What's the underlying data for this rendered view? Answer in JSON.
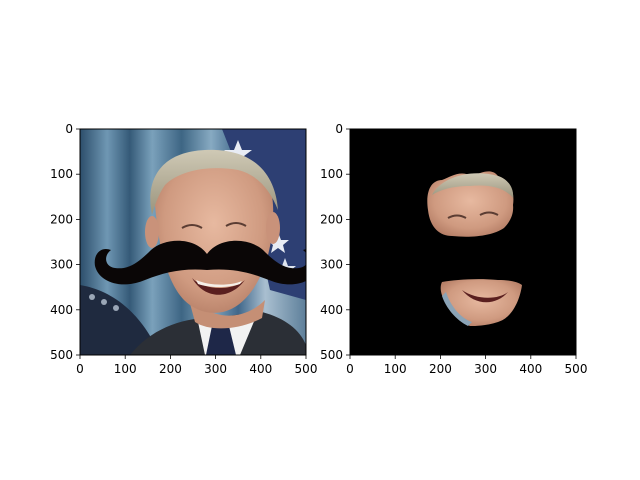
{
  "chart_data": [
    {
      "type": "image",
      "title": "",
      "xlabel": "",
      "ylabel": "",
      "xlim": [
        0,
        500
      ],
      "ylim": [
        500,
        0
      ],
      "xticks": [
        0,
        100,
        200,
        300,
        400,
        500
      ],
      "yticks": [
        0,
        100,
        200,
        300,
        400,
        500
      ],
      "grid": false,
      "content": "photo of a smiling man in a suit with a black mustache overlay"
    },
    {
      "type": "image",
      "title": "",
      "xlabel": "",
      "ylabel": "",
      "xlim": [
        0,
        500
      ],
      "ylim": [
        500,
        0
      ],
      "xticks": [
        0,
        100,
        200,
        300,
        400,
        500
      ],
      "yticks": [
        0,
        100,
        200,
        300,
        400,
        500
      ],
      "grid": false,
      "content": "masked face region on black background"
    }
  ],
  "colors": {
    "background": "#ffffff",
    "mask": "#000000",
    "mustache": "#0a0606",
    "curtain": "#3f6f8f",
    "skin": "#d9a78e",
    "hair": "#b9b39c",
    "suit": "#2b2f36",
    "shirt": "#f2f2f2"
  }
}
